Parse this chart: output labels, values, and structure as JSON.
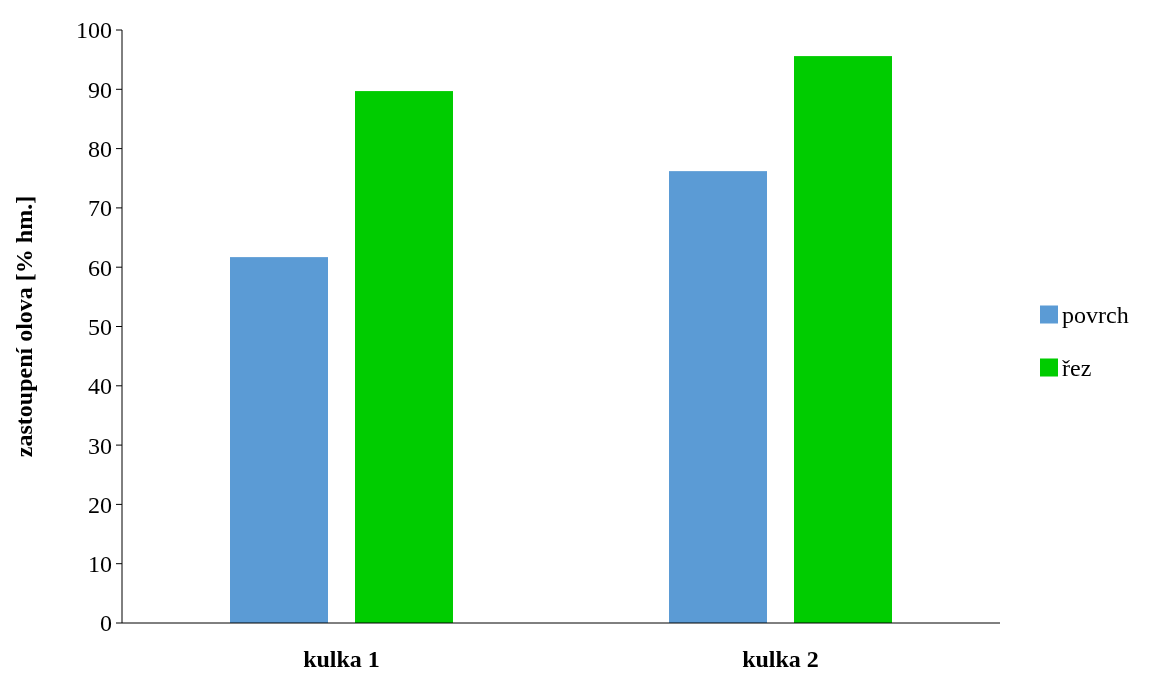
{
  "chart_data": {
    "type": "bar",
    "ylabel": "zastoupení olova [% hm.]",
    "categories": [
      "kulka 1",
      "kulka 2"
    ],
    "series": [
      {
        "name": "povrch",
        "color": "#5b9bd5",
        "values": [
          61.7,
          76.2
        ]
      },
      {
        "name": "řez",
        "color": "#00cc00",
        "values": [
          89.7,
          95.6
        ]
      }
    ],
    "ylim": [
      0,
      100
    ],
    "yticks": [
      0,
      10,
      20,
      30,
      40,
      50,
      60,
      70,
      80,
      90,
      100
    ],
    "grid": false,
    "legend": "right"
  }
}
